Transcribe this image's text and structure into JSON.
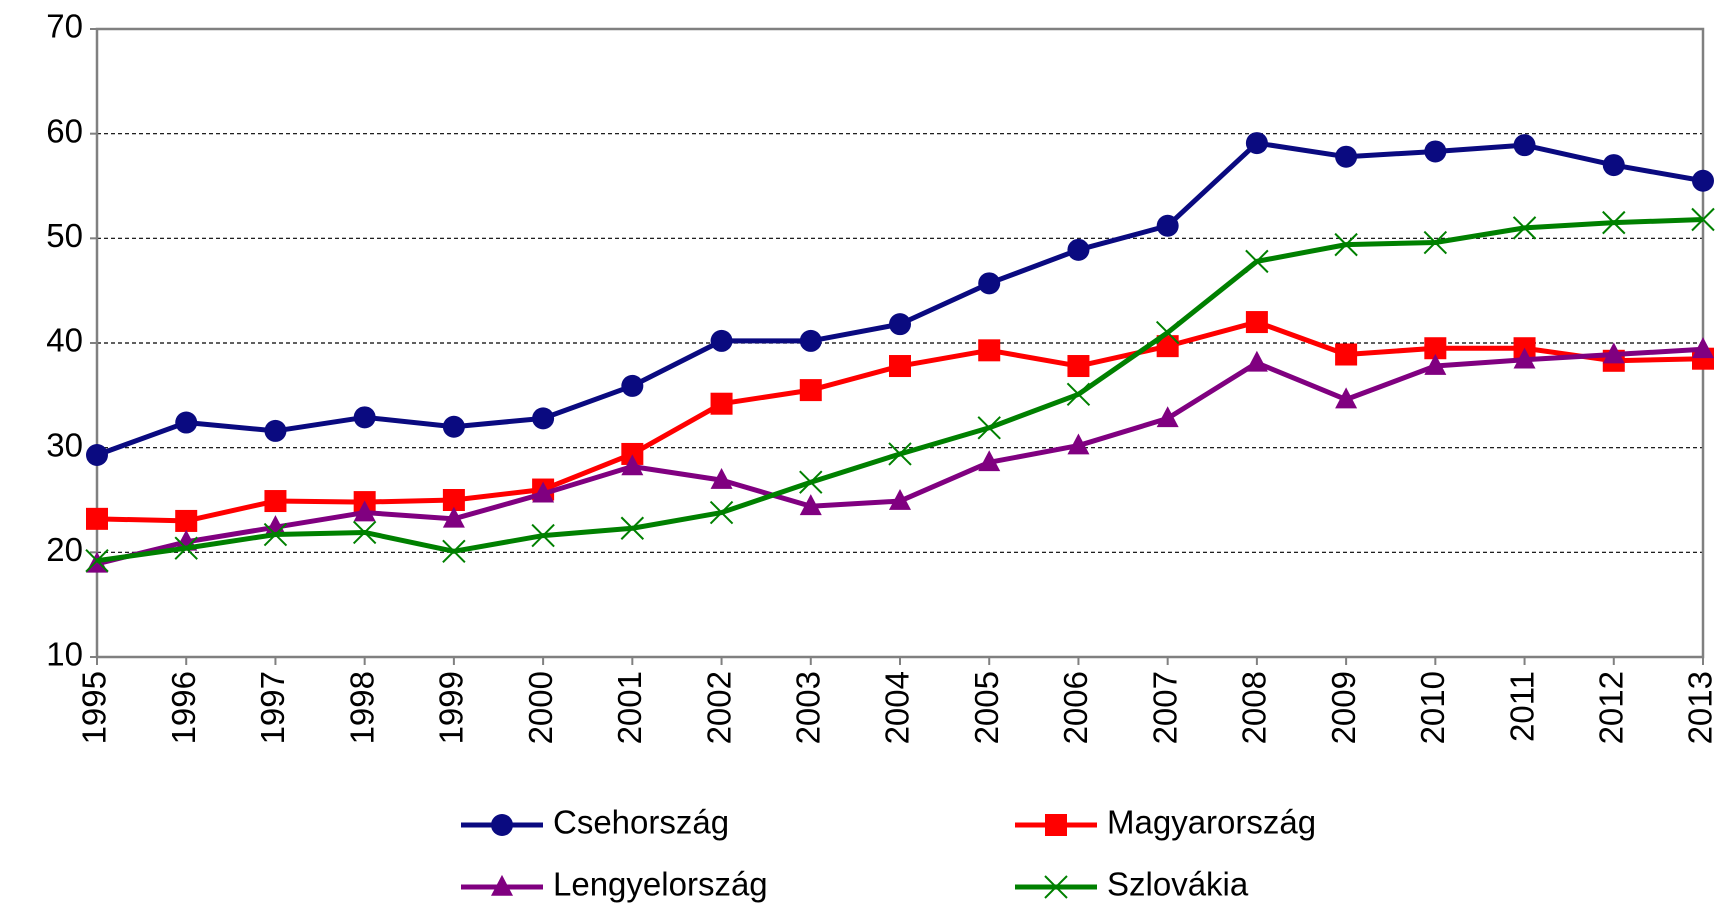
{
  "chart_data": {
    "type": "line",
    "categories": [
      "1995",
      "1996",
      "1997",
      "1998",
      "1999",
      "2000",
      "2001",
      "2002",
      "2003",
      "2004",
      "2005",
      "2006",
      "2007",
      "2008",
      "2009",
      "2010",
      "2011",
      "2012",
      "2013"
    ],
    "series": [
      {
        "name": "Csehország",
        "color": "#0a0a80",
        "marker": "circle",
        "values": [
          29.3,
          32.4,
          31.6,
          32.9,
          32.0,
          32.8,
          35.9,
          40.2,
          40.2,
          41.8,
          45.7,
          48.9,
          51.2,
          59.1,
          57.8,
          58.3,
          58.9,
          57.0,
          55.5
        ]
      },
      {
        "name": "Magyarország",
        "color": "#ff0000",
        "marker": "square",
        "values": [
          23.2,
          23.0,
          24.9,
          24.8,
          25.0,
          26.0,
          29.4,
          34.2,
          35.5,
          37.8,
          39.3,
          37.8,
          39.7,
          42.0,
          38.9,
          39.5,
          39.5,
          38.3,
          38.5
        ]
      },
      {
        "name": "Lengyelország",
        "color": "#800080",
        "marker": "triangle",
        "values": [
          18.9,
          21.0,
          22.4,
          23.8,
          23.2,
          25.6,
          28.2,
          26.9,
          24.4,
          24.9,
          28.6,
          30.2,
          32.8,
          38.1,
          34.6,
          37.8,
          38.4,
          38.9,
          39.4
        ]
      },
      {
        "name": "Szlovákia",
        "color": "#008000",
        "marker": "x",
        "values": [
          19.2,
          20.4,
          21.7,
          21.9,
          20.1,
          21.6,
          22.3,
          23.8,
          26.7,
          29.4,
          31.9,
          35.1,
          41.0,
          47.8,
          49.4,
          49.6,
          51.0,
          51.5,
          51.8
        ]
      }
    ],
    "ylim": [
      10,
      70
    ],
    "yticks": [
      10,
      20,
      30,
      40,
      50,
      60,
      70
    ],
    "grid": true,
    "legend": "bottom"
  }
}
